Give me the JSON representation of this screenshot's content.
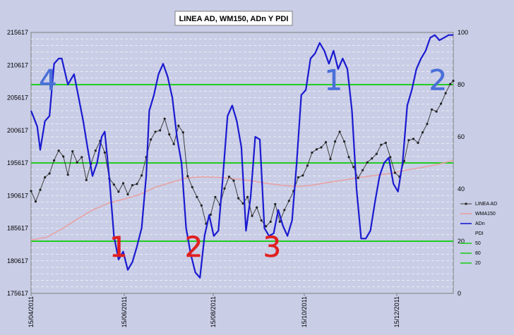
{
  "chart_data": {
    "type": "line",
    "title": "LINEA AD, WM150, ADn Y PDI",
    "x_tick_labels": [
      "15/04/2011",
      "15/06/2011",
      "15/08/2011",
      "15/10/2011",
      "15/12/2011"
    ],
    "y_left": {
      "min": 175617,
      "max": 215617,
      "ticks": [
        175617,
        180617,
        185617,
        190617,
        195617,
        200617,
        205617,
        210617,
        215617
      ]
    },
    "y_right": {
      "min": 0,
      "max": 100,
      "ticks": [
        0,
        20,
        40,
        60,
        80,
        100
      ]
    },
    "grid": true,
    "legend_placement": "right",
    "legend": {
      "items": [
        {
          "label": "LINEA AD",
          "color": "#404040",
          "marker": true
        },
        {
          "label": "WMA150",
          "color": "#e8a0a0",
          "marker": false
        },
        {
          "label": "ADn",
          "color": "#1a1ad0",
          "marker": false
        },
        {
          "label": "PDI",
          "color": "none",
          "marker": false
        },
        {
          "label": "50",
          "color": "#22cc22",
          "marker": false
        },
        {
          "label": "80",
          "color": "#22cc22",
          "marker": false
        },
        {
          "label": "20",
          "color": "#22cc22",
          "marker": false
        }
      ]
    },
    "reference_lines_right_axis": [
      80,
      50,
      20
    ],
    "annotations": [
      {
        "text": "4",
        "color": "#4a6fd8",
        "date": "2011-04-26",
        "right_value": 78
      },
      {
        "text": "1",
        "color": "#e02020",
        "date": "2011-06-11",
        "right_value": 14
      },
      {
        "text": "2",
        "color": "#e02020",
        "date": "2011-07-30",
        "right_value": 14
      },
      {
        "text": "3",
        "color": "#e02020",
        "date": "2011-09-19",
        "right_value": 14
      },
      {
        "text": "1",
        "color": "#4a6fd8",
        "date": "2011-10-29",
        "right_value": 78
      },
      {
        "text": "2",
        "color": "#4a6fd8",
        "date": "2012-01-05",
        "right_value": 78
      }
    ],
    "series": [
      {
        "name": "ADn",
        "axis": "right",
        "color": "#1a1ad0",
        "points": [
          [
            "2011-04-15",
            70
          ],
          [
            "2011-04-19",
            64
          ],
          [
            "2011-04-21",
            55
          ],
          [
            "2011-04-24",
            66
          ],
          [
            "2011-04-27",
            68
          ],
          [
            "2011-04-30",
            88
          ],
          [
            "2011-05-03",
            90
          ],
          [
            "2011-05-05",
            90
          ],
          [
            "2011-05-07",
            85
          ],
          [
            "2011-05-09",
            80
          ],
          [
            "2011-05-11",
            82
          ],
          [
            "2011-05-13",
            84
          ],
          [
            "2011-05-16",
            75
          ],
          [
            "2011-05-19",
            66
          ],
          [
            "2011-05-22",
            55
          ],
          [
            "2011-05-25",
            45
          ],
          [
            "2011-05-28",
            50
          ],
          [
            "2011-05-31",
            60
          ],
          [
            "2011-06-02",
            62
          ],
          [
            "2011-06-05",
            44
          ],
          [
            "2011-06-08",
            22
          ],
          [
            "2011-06-11",
            13
          ],
          [
            "2011-06-14",
            16
          ],
          [
            "2011-06-17",
            9
          ],
          [
            "2011-06-20",
            12
          ],
          [
            "2011-06-23",
            18
          ],
          [
            "2011-06-26",
            25
          ],
          [
            "2011-06-29",
            45
          ],
          [
            "2011-07-01",
            70
          ],
          [
            "2011-07-04",
            76
          ],
          [
            "2011-07-07",
            84
          ],
          [
            "2011-07-10",
            88
          ],
          [
            "2011-07-13",
            83
          ],
          [
            "2011-07-16",
            75
          ],
          [
            "2011-07-19",
            60
          ],
          [
            "2011-07-22",
            50
          ],
          [
            "2011-07-25",
            25
          ],
          [
            "2011-07-28",
            15
          ],
          [
            "2011-07-31",
            8
          ],
          [
            "2011-08-03",
            6
          ],
          [
            "2011-08-06",
            22
          ],
          [
            "2011-08-09",
            30
          ],
          [
            "2011-08-12",
            22
          ],
          [
            "2011-08-15",
            24
          ],
          [
            "2011-08-18",
            45
          ],
          [
            "2011-08-21",
            68
          ],
          [
            "2011-08-24",
            72
          ],
          [
            "2011-08-27",
            66
          ],
          [
            "2011-08-30",
            56
          ],
          [
            "2011-09-02",
            24
          ],
          [
            "2011-09-05",
            37
          ],
          [
            "2011-09-08",
            60
          ],
          [
            "2011-09-11",
            59
          ],
          [
            "2011-09-14",
            25
          ],
          [
            "2011-09-17",
            22
          ],
          [
            "2011-09-20",
            23
          ],
          [
            "2011-09-23",
            32
          ],
          [
            "2011-09-26",
            26
          ],
          [
            "2011-09-29",
            22
          ],
          [
            "2011-10-02",
            28
          ],
          [
            "2011-10-05",
            50
          ],
          [
            "2011-10-08",
            76
          ],
          [
            "2011-10-11",
            78
          ],
          [
            "2011-10-14",
            90
          ],
          [
            "2011-10-17",
            92
          ],
          [
            "2011-10-20",
            96
          ],
          [
            "2011-10-23",
            93
          ],
          [
            "2011-10-26",
            88
          ],
          [
            "2011-10-29",
            93
          ],
          [
            "2011-11-01",
            86
          ],
          [
            "2011-11-04",
            90
          ],
          [
            "2011-11-07",
            86
          ],
          [
            "2011-11-10",
            70
          ],
          [
            "2011-11-13",
            40
          ],
          [
            "2011-11-16",
            21
          ],
          [
            "2011-11-19",
            21
          ],
          [
            "2011-11-22",
            24
          ],
          [
            "2011-11-25",
            35
          ],
          [
            "2011-11-28",
            45
          ],
          [
            "2011-12-01",
            50
          ],
          [
            "2011-12-04",
            52
          ],
          [
            "2011-12-07",
            42
          ],
          [
            "2011-12-10",
            39
          ],
          [
            "2011-12-13",
            50
          ],
          [
            "2011-12-16",
            72
          ],
          [
            "2011-12-19",
            78
          ],
          [
            "2011-12-22",
            86
          ],
          [
            "2011-12-25",
            90
          ],
          [
            "2011-12-28",
            93
          ],
          [
            "2011-12-31",
            98
          ],
          [
            "2012-01-03",
            99
          ],
          [
            "2012-01-06",
            97
          ],
          [
            "2012-01-09",
            98
          ],
          [
            "2012-01-12",
            99
          ],
          [
            "2012-01-15",
            99
          ]
        ]
      },
      {
        "name": "LINEA AD",
        "axis": "left",
        "color": "#404040",
        "points": [
          [
            "2011-04-15",
            191300
          ],
          [
            "2011-04-18",
            189700
          ],
          [
            "2011-04-21",
            191500
          ],
          [
            "2011-04-24",
            193400
          ],
          [
            "2011-04-27",
            194000
          ],
          [
            "2011-04-30",
            196000
          ],
          [
            "2011-05-03",
            197500
          ],
          [
            "2011-05-06",
            196600
          ],
          [
            "2011-05-09",
            193800
          ],
          [
            "2011-05-12",
            197400
          ],
          [
            "2011-05-15",
            195700
          ],
          [
            "2011-05-18",
            196500
          ],
          [
            "2011-05-21",
            193000
          ],
          [
            "2011-05-24",
            195500
          ],
          [
            "2011-05-27",
            197500
          ],
          [
            "2011-05-30",
            199000
          ],
          [
            "2011-06-02",
            197200
          ],
          [
            "2011-06-05",
            193200
          ],
          [
            "2011-06-08",
            192300
          ],
          [
            "2011-06-11",
            191200
          ],
          [
            "2011-06-14",
            192500
          ],
          [
            "2011-06-17",
            190800
          ],
          [
            "2011-06-20",
            192200
          ],
          [
            "2011-06-23",
            192400
          ],
          [
            "2011-06-26",
            193700
          ],
          [
            "2011-06-29",
            196500
          ],
          [
            "2011-07-02",
            199200
          ],
          [
            "2011-07-05",
            200400
          ],
          [
            "2011-07-08",
            200600
          ],
          [
            "2011-07-11",
            202400
          ],
          [
            "2011-07-14",
            200000
          ],
          [
            "2011-07-17",
            198500
          ],
          [
            "2011-07-20",
            201300
          ],
          [
            "2011-07-23",
            200300
          ],
          [
            "2011-07-26",
            193600
          ],
          [
            "2011-07-29",
            191900
          ],
          [
            "2011-08-01",
            190400
          ],
          [
            "2011-08-04",
            189100
          ],
          [
            "2011-08-07",
            186300
          ],
          [
            "2011-08-10",
            187700
          ],
          [
            "2011-08-13",
            190400
          ],
          [
            "2011-08-16",
            189200
          ],
          [
            "2011-08-19",
            191700
          ],
          [
            "2011-08-22",
            193500
          ],
          [
            "2011-08-25",
            192900
          ],
          [
            "2011-08-28",
            190200
          ],
          [
            "2011-08-31",
            189400
          ],
          [
            "2011-09-03",
            190400
          ],
          [
            "2011-09-06",
            187500
          ],
          [
            "2011-09-09",
            188800
          ],
          [
            "2011-09-12",
            186800
          ],
          [
            "2011-09-15",
            185900
          ],
          [
            "2011-09-18",
            186600
          ],
          [
            "2011-09-21",
            189300
          ],
          [
            "2011-09-24",
            186600
          ],
          [
            "2011-09-27",
            188400
          ],
          [
            "2011-09-30",
            189800
          ],
          [
            "2011-10-03",
            191300
          ],
          [
            "2011-10-06",
            193400
          ],
          [
            "2011-10-09",
            193700
          ],
          [
            "2011-10-12",
            195200
          ],
          [
            "2011-10-15",
            197200
          ],
          [
            "2011-10-18",
            197700
          ],
          [
            "2011-10-21",
            198000
          ],
          [
            "2011-10-24",
            198800
          ],
          [
            "2011-10-27",
            196200
          ],
          [
            "2011-10-30",
            198900
          ],
          [
            "2011-11-02",
            200400
          ],
          [
            "2011-11-05",
            198900
          ],
          [
            "2011-11-08",
            196500
          ],
          [
            "2011-11-11",
            195000
          ],
          [
            "2011-11-14",
            193300
          ],
          [
            "2011-11-17",
            194500
          ],
          [
            "2011-11-20",
            195700
          ],
          [
            "2011-11-23",
            196300
          ],
          [
            "2011-11-26",
            197000
          ],
          [
            "2011-11-29",
            198400
          ],
          [
            "2011-12-02",
            198700
          ],
          [
            "2011-12-05",
            196500
          ],
          [
            "2011-12-08",
            194100
          ],
          [
            "2011-12-11",
            193500
          ],
          [
            "2011-12-14",
            195900
          ],
          [
            "2011-12-17",
            199100
          ],
          [
            "2011-12-20",
            199300
          ],
          [
            "2011-12-23",
            198700
          ],
          [
            "2011-12-26",
            200300
          ],
          [
            "2011-12-29",
            201600
          ],
          [
            "2012-01-01",
            203800
          ],
          [
            "2012-01-04",
            203500
          ],
          [
            "2012-01-07",
            204700
          ],
          [
            "2012-01-10",
            206300
          ],
          [
            "2012-01-13",
            207700
          ],
          [
            "2012-01-15",
            208200
          ]
        ]
      },
      {
        "name": "WMA150",
        "axis": "left",
        "color": "#e8a0a0",
        "points": [
          [
            "2011-04-15",
            183800
          ],
          [
            "2011-04-25",
            184200
          ],
          [
            "2011-05-05",
            185500
          ],
          [
            "2011-05-15",
            187000
          ],
          [
            "2011-05-25",
            188400
          ],
          [
            "2011-06-05",
            189500
          ],
          [
            "2011-06-15",
            190100
          ],
          [
            "2011-06-25",
            190800
          ],
          [
            "2011-07-05",
            191900
          ],
          [
            "2011-07-15",
            192600
          ],
          [
            "2011-07-25",
            193300
          ],
          [
            "2011-08-05",
            193500
          ],
          [
            "2011-08-15",
            193400
          ],
          [
            "2011-08-25",
            193200
          ],
          [
            "2011-09-05",
            192900
          ],
          [
            "2011-09-15",
            192500
          ],
          [
            "2011-09-25",
            192200
          ],
          [
            "2011-10-05",
            192000
          ],
          [
            "2011-10-15",
            192200
          ],
          [
            "2011-10-25",
            192600
          ],
          [
            "2011-11-05",
            193000
          ],
          [
            "2011-11-15",
            193400
          ],
          [
            "2011-11-25",
            193700
          ],
          [
            "2011-12-05",
            194000
          ],
          [
            "2011-12-15",
            194500
          ],
          [
            "2011-12-25",
            194900
          ],
          [
            "2012-01-05",
            195400
          ],
          [
            "2012-01-15",
            196000
          ]
        ]
      }
    ]
  }
}
